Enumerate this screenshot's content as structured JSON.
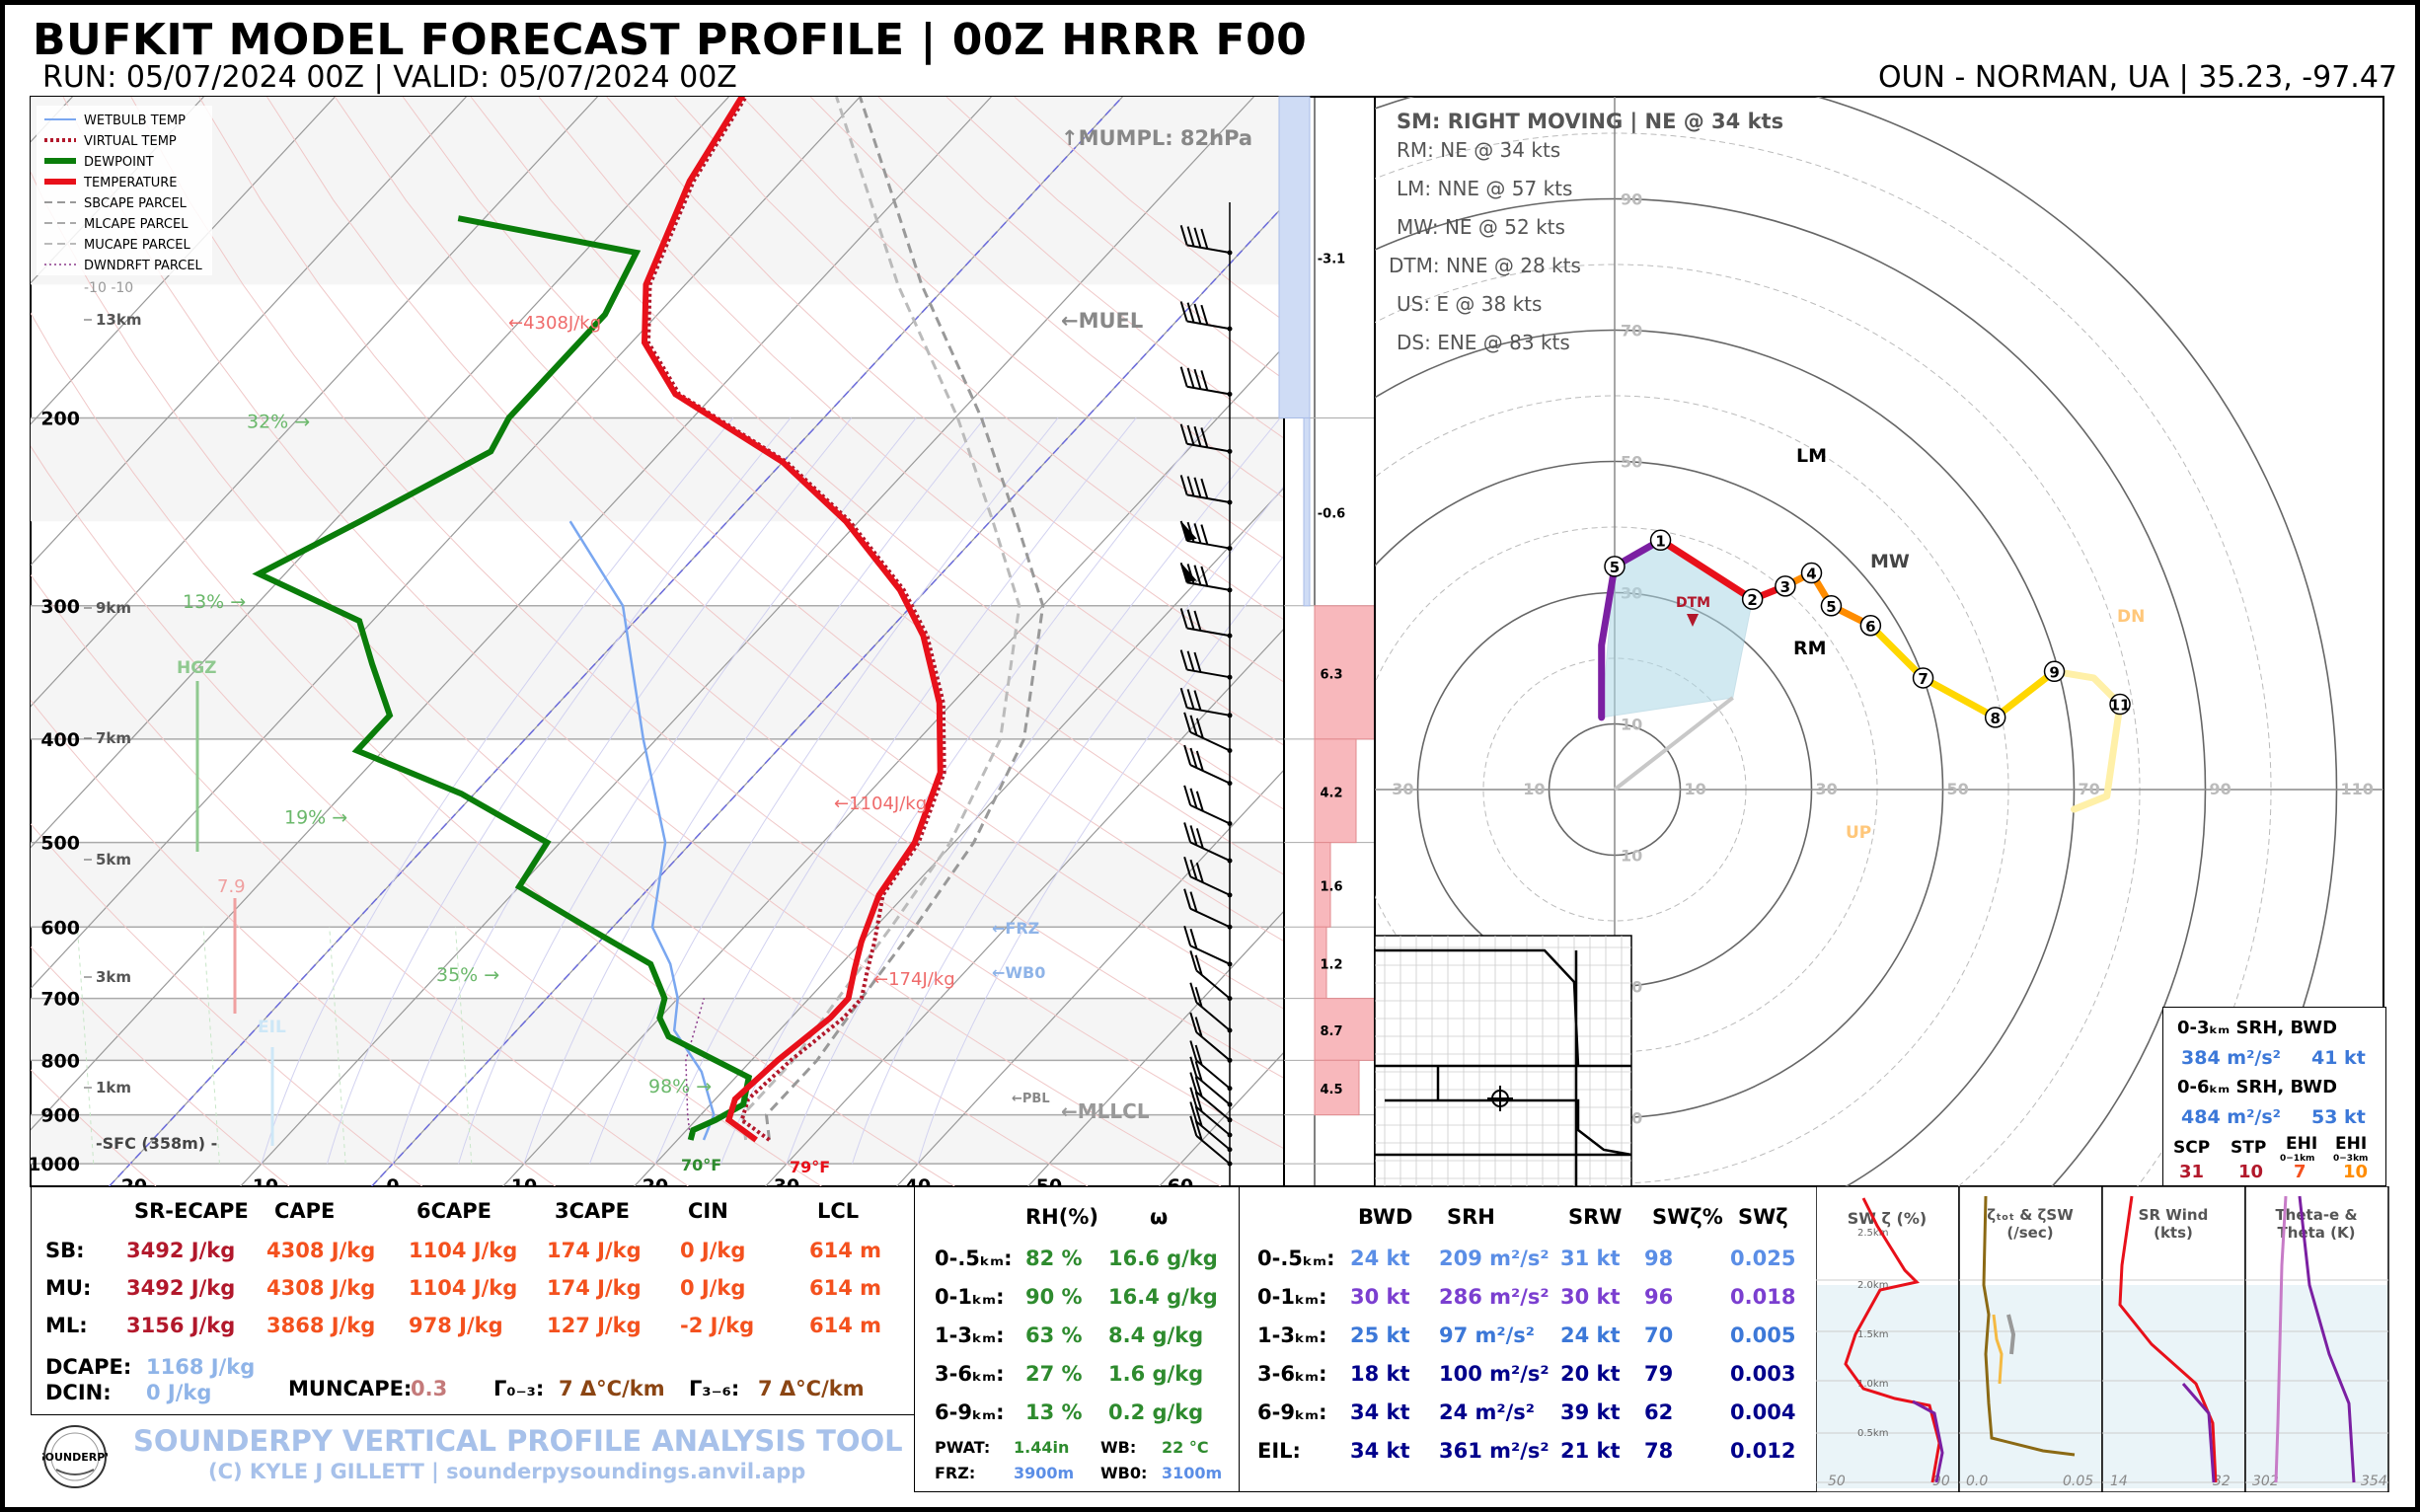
{
  "header": {
    "title": "BUFKIT MODEL FORECAST PROFILE | 00Z HRRR F00",
    "run": "RUN: 05/07/2024 00Z  |  VALID: 05/07/2024 00Z",
    "location": "OUN - NORMAN, UA | 35.23, -97.47"
  },
  "chart_data": [
    {
      "type": "line",
      "name": "skew-t",
      "pressure_ticks": [
        200,
        300,
        400,
        500,
        600,
        700,
        800,
        900,
        1000
      ],
      "temp_ticks": [
        -20,
        -10,
        0,
        10,
        20,
        30,
        40,
        50,
        60
      ],
      "height_labels": [
        {
          "p": 150,
          "label": "13km"
        },
        {
          "p": 300,
          "label": "9km"
        },
        {
          "p": 400,
          "label": "7km"
        },
        {
          "p": 510,
          "label": "5km"
        },
        {
          "p": 690,
          "label": "3km"
        },
        {
          "p": 880,
          "label": "1km"
        }
      ],
      "sfc_label": "-SFC (358m) -",
      "legend": [
        "WETBULB TEMP",
        "VIRTUAL TEMP",
        "DEWPOINT",
        "TEMPERATURE",
        "SBCAPE PARCEL",
        "MLCAPE PARCEL",
        "MUCAPE PARCEL",
        "DWNDRFT PARCEL"
      ],
      "temperature": [
        [
          950,
          26
        ],
        [
          910,
          22.5
        ],
        [
          870,
          21.5
        ],
        [
          800,
          22
        ],
        [
          730,
          23
        ],
        [
          700,
          23
        ],
        [
          660,
          21.5
        ],
        [
          620,
          20
        ],
        [
          560,
          18
        ],
        [
          500,
          17
        ],
        [
          430,
          14
        ],
        [
          370,
          9
        ],
        [
          320,
          3
        ],
        [
          290,
          -2
        ],
        [
          250,
          -11
        ],
        [
          220,
          -20
        ],
        [
          190,
          -33
        ],
        [
          170,
          -39
        ],
        [
          150,
          -43
        ],
        [
          120,
          -47
        ],
        [
          100,
          -49
        ],
        [
          85,
          -54
        ],
        [
          75,
          -58
        ],
        [
          68,
          -63
        ]
      ],
      "dewpoint": [
        [
          950,
          21
        ],
        [
          930,
          20.5
        ],
        [
          910,
          21.5
        ],
        [
          880,
          22.5
        ],
        [
          830,
          21
        ],
        [
          760,
          12
        ],
        [
          730,
          10
        ],
        [
          700,
          9
        ],
        [
          650,
          5.5
        ],
        [
          600,
          -2
        ],
        [
          550,
          -10
        ],
        [
          500,
          -11
        ],
        [
          450,
          -21
        ],
        [
          410,
          -32
        ],
        [
          380,
          -32
        ],
        [
          340,
          -37
        ],
        [
          310,
          -41
        ],
        [
          280,
          -52
        ],
        [
          250,
          -48
        ],
        [
          215,
          -43
        ],
        [
          200,
          -44
        ],
        [
          175,
          -44
        ],
        [
          160,
          -44
        ],
        [
          140,
          -46
        ],
        [
          130,
          -62
        ]
      ],
      "wetbulb": [
        [
          950,
          22
        ],
        [
          900,
          21
        ],
        [
          820,
          17
        ],
        [
          750,
          12
        ],
        [
          700,
          10
        ],
        [
          650,
          7
        ],
        [
          600,
          3
        ],
        [
          500,
          -2
        ],
        [
          400,
          -11
        ],
        [
          300,
          -22
        ],
        [
          250,
          -32
        ]
      ],
      "parcel": [
        [
          950,
          27
        ],
        [
          900,
          25
        ],
        [
          800,
          25
        ],
        [
          700,
          24
        ],
        [
          600,
          23
        ],
        [
          500,
          21.5
        ],
        [
          400,
          18
        ],
        [
          300,
          10
        ],
        [
          250,
          2
        ],
        [
          200,
          -8
        ],
        [
          150,
          -22
        ],
        [
          100,
          -40
        ]
      ],
      "annotations": {
        "mumpl": "↑MUMPL: 82hPa",
        "muel": "←MUEL",
        "frz": "←FRZ",
        "wb0": "←WB0",
        "pbl": "←PBL",
        "mllcl": "←MLLCL",
        "cape_top": "←4308J/kg",
        "cape_6": "←1104J/kg",
        "cape_3": "←174J/kg",
        "hgz": "HGZ",
        "eil": "EIL",
        "lapse": "7.9",
        "rh_labels": [
          {
            "p": 200,
            "label": "32% →"
          },
          {
            "p": 295,
            "label": "13% →"
          },
          {
            "p": 470,
            "label": "19% →"
          },
          {
            "p": 660,
            "label": "35% →"
          },
          {
            "p": 840,
            "label": "98% →"
          }
        ],
        "sfc_temp": "79°F",
        "sfc_dew": "70°F",
        "tick_m10": "-10  -10"
      }
    },
    {
      "type": "bar",
      "name": "inferred-temp-advection",
      "labels": [
        "-3.1",
        "-0.6",
        "6.3",
        "4.2",
        "1.6",
        "1.2",
        "8.7",
        "4.5"
      ],
      "values": [
        -3.1,
        -0.6,
        6.3,
        4.2,
        1.6,
        1.2,
        8.7,
        4.5
      ]
    },
    {
      "type": "scatter",
      "name": "hodograph",
      "ring_labels": [
        "10",
        "30",
        "50",
        "70",
        "90",
        "110"
      ],
      "points": [
        {
          "label": "5",
          "u": 0,
          "v": 34
        },
        {
          "label": "1",
          "u": 7,
          "v": 38
        },
        {
          "label": "2",
          "u": 21,
          "v": 29
        },
        {
          "label": "3",
          "u": 26,
          "v": 31
        },
        {
          "label": "4",
          "u": 30,
          "v": 33
        },
        {
          "label": "5",
          "u": 33,
          "v": 28
        },
        {
          "label": "6",
          "u": 39,
          "v": 25
        },
        {
          "label": "7",
          "u": 47,
          "v": 17
        },
        {
          "label": "8",
          "u": 58,
          "v": 11
        },
        {
          "label": "9",
          "u": 67,
          "v": 18
        },
        {
          "label": "11",
          "u": 77,
          "v": 13
        }
      ],
      "markers": {
        "lm": "LM",
        "mw": "MW",
        "rm": "RM",
        "dtm": "DTM",
        "dn": "DN",
        "up": "UP"
      },
      "storm_motion": [
        "SM: RIGHT MOVING | NE @ 34 kts",
        "RM: NE @ 34 kts",
        "LM: NNE @ 57 kts",
        "MW: NE @ 52 kts",
        "DTM: NNE @ 28 kts",
        "US: E @ 38 kts",
        "DS: ENE @ 83 kts"
      ]
    }
  ],
  "srh_box": {
    "h1": "0-3ₖₘ SRH,   BWD",
    "v1a": "384 m²/s²",
    "v1b": "41 kt",
    "h2": "0-6ₖₘ SRH,   BWD",
    "v2a": "484 m²/s²",
    "v2b": "53 kt",
    "labels": [
      "SCP",
      "STP",
      "EHI",
      "EHI"
    ],
    "sub": [
      "0−1km",
      "0−3km"
    ],
    "values": [
      "31",
      "10",
      "7",
      "10"
    ]
  },
  "thermo_table": {
    "headers": [
      "SR-ECAPE",
      "CAPE",
      "6CAPE",
      "3CAPE",
      "CIN",
      "LCL"
    ],
    "rows": [
      {
        "label": "SB:",
        "vals": [
          "3492 J/kg",
          "4308 J/kg",
          "1104 J/kg",
          "174 J/kg",
          "0 J/kg",
          "614 m"
        ]
      },
      {
        "label": "MU:",
        "vals": [
          "3492 J/kg",
          "4308 J/kg",
          "1104 J/kg",
          "174 J/kg",
          "0 J/kg",
          "614 m"
        ]
      },
      {
        "label": "ML:",
        "vals": [
          "3156 J/kg",
          "3868 J/kg",
          "978 J/kg",
          "127 J/kg",
          "-2 J/kg",
          "614 m"
        ]
      }
    ],
    "dcape_label": "DCAPE:",
    "dcape": "1168 J/kg",
    "dcin_label": "DCIN:",
    "dcin": "0 J/kg",
    "muncape_label": "MUNCAPE:",
    "muncape": "0.3",
    "g03_label": "Γ₀₋₃:",
    "g03": "7 Δ°C/km",
    "g36_label": "Γ₃₋₆:",
    "g36": "7 Δ°C/km"
  },
  "branding": {
    "title": "SOUNDERPY VERTICAL PROFILE ANALYSIS TOOL",
    "credit": "(C) KYLE J GILLETT | sounderpysoundings.anvil.app",
    "logo": "SOUNDERPY"
  },
  "moisture_table": {
    "headers": [
      "RH(%)",
      "ω"
    ],
    "rows": [
      {
        "label": "0-.5ₖₘ:",
        "rh": "82 %",
        "w": "16.6 g/kg"
      },
      {
        "label": "0-1ₖₘ:",
        "rh": "90 %",
        "w": "16.4 g/kg"
      },
      {
        "label": "1-3ₖₘ:",
        "rh": "63 %",
        "w": "8.4 g/kg"
      },
      {
        "label": "3-6ₖₘ:",
        "rh": "27 %",
        "w": "1.6 g/kg"
      },
      {
        "label": "6-9ₖₘ:",
        "rh": "13 %",
        "w": "0.2 g/kg"
      }
    ],
    "pwat_label": "PWAT:",
    "pwat": "1.44in",
    "wb_label": "WB:",
    "wb": "22 °C",
    "frz_label": "FRZ:",
    "frz": "3900m",
    "wb0_label": "WB0:",
    "wb0": "3100m"
  },
  "kinematic_table": {
    "headers": [
      "BWD",
      "SRH",
      "SRW",
      "SWζ%",
      "SWζ"
    ],
    "rows": [
      {
        "label": "0-.5ₖₘ:",
        "vals": [
          "24 kt",
          "209 m²/s²",
          "31 kt",
          "98",
          "0.025"
        ]
      },
      {
        "label": "0-1ₖₘ:",
        "vals": [
          "30 kt",
          "286 m²/s²",
          "30 kt",
          "96",
          "0.018"
        ]
      },
      {
        "label": "1-3ₖₘ:",
        "vals": [
          "25 kt",
          "97 m²/s²",
          "24 kt",
          "70",
          "0.005"
        ]
      },
      {
        "label": "3-6ₖₘ:",
        "vals": [
          "18 kt",
          "100 m²/s²",
          "20 kt",
          "79",
          "0.003"
        ]
      },
      {
        "label": "6-9ₖₘ:",
        "vals": [
          "34 kt",
          "24 m²/s²",
          "39 kt",
          "62",
          "0.004"
        ]
      },
      {
        "label": "EIL:",
        "vals": [
          "34 kt",
          "361 m²/s²",
          "21 kt",
          "78",
          "0.012"
        ]
      }
    ]
  },
  "mini_charts": {
    "titles": [
      "SW ζ (%)",
      "ζₜₒₜ & ζSW\n(/sec)",
      "SR Wind\n(kts)",
      "Theta-e &\nTheta (K)"
    ],
    "title1": "SW ζ (%)",
    "title2a": "ζₜₒₜ & ζSW",
    "title2b": "(/sec)",
    "title3a": "SR Wind",
    "title3b": "(kts)",
    "title4a": "Theta-e &",
    "title4b": "Theta (K)",
    "ylabels": [
      "2.5km",
      "2.0km",
      "1.5km",
      "1.0km",
      "0.5km"
    ],
    "x1": [
      "50",
      "90"
    ],
    "x2": [
      "0.0",
      "0.05"
    ],
    "x3": [
      "14",
      "32"
    ],
    "x4": [
      "302",
      "354"
    ]
  }
}
